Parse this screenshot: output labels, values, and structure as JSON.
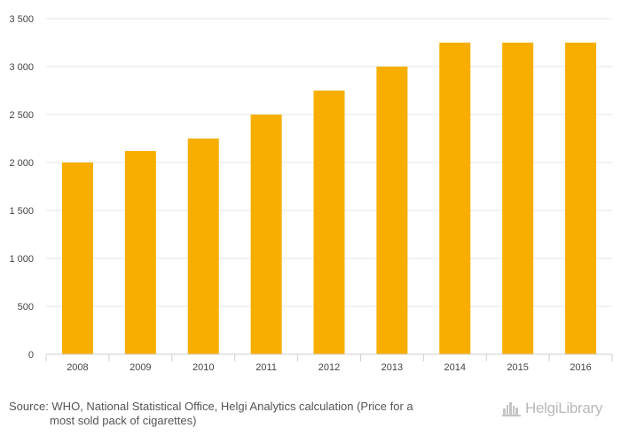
{
  "chart_data": {
    "type": "bar",
    "categories": [
      "2008",
      "2009",
      "2010",
      "2011",
      "2012",
      "2013",
      "2014",
      "2015",
      "2016"
    ],
    "values": [
      2000,
      2120,
      2250,
      2500,
      2750,
      3000,
      3250,
      3250,
      3250
    ],
    "y_ticks": [
      0,
      500,
      1000,
      1500,
      2000,
      2500,
      3000,
      3500
    ],
    "y_tick_labels": [
      "0",
      "500",
      "1 000",
      "1 500",
      "2 000",
      "2 500",
      "3 000",
      "3 500"
    ],
    "ylim": [
      0,
      3500
    ],
    "grid": true,
    "bar_color": "#f7ae00",
    "title": "",
    "xlabel": "",
    "ylabel": ""
  },
  "footer": {
    "source_line1": "Source: WHO, National Statistical Office, Helgi Analytics calculation (Price for a",
    "source_line2": "most sold pack of cigarettes)"
  },
  "brand": {
    "name": "HelgiLibrary",
    "icon": "helgi-library-skyline-icon",
    "color": "#b9b9b9"
  }
}
